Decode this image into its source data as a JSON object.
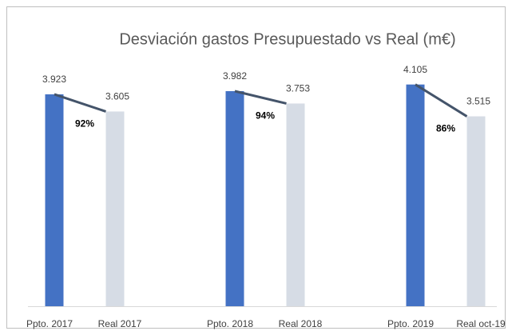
{
  "chart_data": {
    "type": "bar",
    "title": "Desviación gastos Presupuestado vs Real (m€)",
    "categories": [
      "Ppto. 2017",
      "Real 2017",
      "Ppto. 2018",
      "Real 2018",
      "Ppto. 2019",
      "Real oct-19"
    ],
    "values": [
      3923,
      3605,
      3982,
      3753,
      4105,
      3515
    ],
    "value_labels": [
      "3.923",
      "3.605",
      "3.982",
      "3.753",
      "4.105",
      "3.515"
    ],
    "colors": [
      "#4472c4",
      "#d6dce5",
      "#4472c4",
      "#d6dce5",
      "#4472c4",
      "#d6dce5"
    ],
    "annotations": [
      "92%",
      "94%",
      "86%"
    ],
    "line_color": "#44546a",
    "ylim": [
      0,
      4500
    ]
  }
}
